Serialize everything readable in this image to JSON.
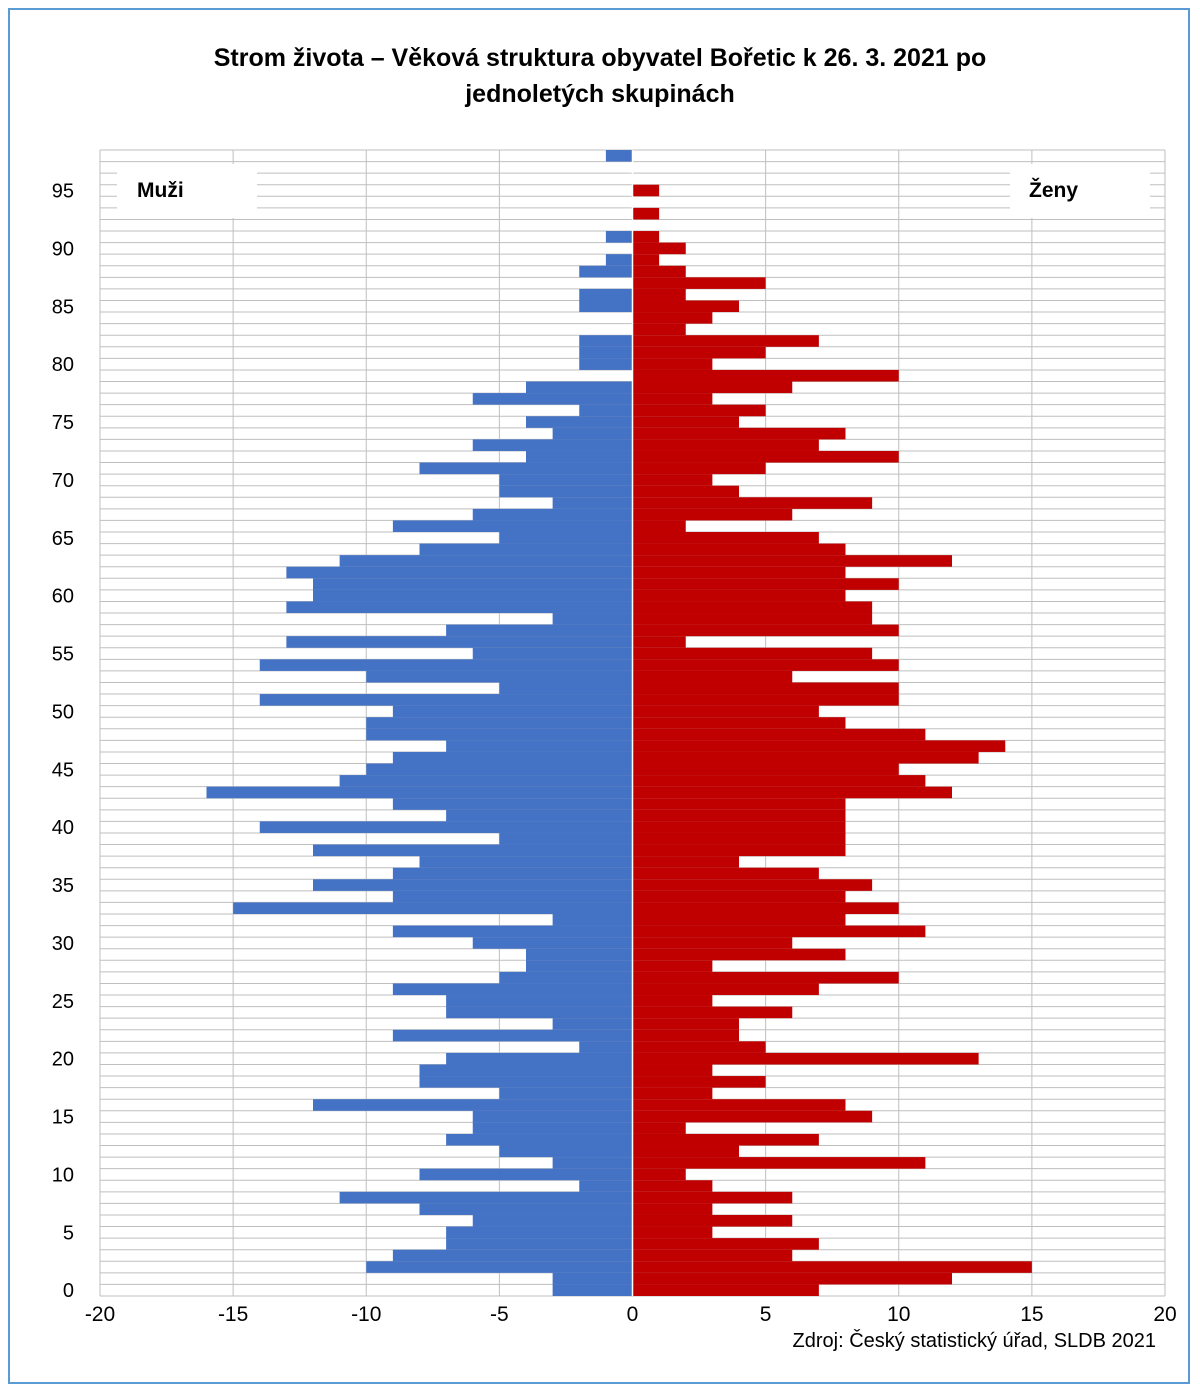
{
  "chart_data": {
    "type": "bar",
    "orientation": "horizontal-population-pyramid",
    "title_line1": "Strom života – Věková struktura obyvatel Bořetic k 26. 3. 2021 po",
    "title_line2": "jednoletých skupinách",
    "x_ticks": [
      "-20",
      "-15",
      "-10",
      "-5",
      "0",
      "5",
      "10",
      "15",
      "20"
    ],
    "y_ticks": [
      "0",
      "5",
      "10",
      "15",
      "20",
      "25",
      "30",
      "35",
      "40",
      "45",
      "50",
      "55",
      "60",
      "65",
      "70",
      "75",
      "80",
      "85",
      "90",
      "95"
    ],
    "xlim": [
      -20,
      20
    ],
    "ylim": [
      0,
      99
    ],
    "categories": [
      0,
      1,
      2,
      3,
      4,
      5,
      6,
      7,
      8,
      9,
      10,
      11,
      12,
      13,
      14,
      15,
      16,
      17,
      18,
      19,
      20,
      21,
      22,
      23,
      24,
      25,
      26,
      27,
      28,
      29,
      30,
      31,
      32,
      33,
      34,
      35,
      36,
      37,
      38,
      39,
      40,
      41,
      42,
      43,
      44,
      45,
      46,
      47,
      48,
      49,
      50,
      51,
      52,
      53,
      54,
      55,
      56,
      57,
      58,
      59,
      60,
      61,
      62,
      63,
      64,
      65,
      66,
      67,
      68,
      69,
      70,
      71,
      72,
      73,
      74,
      75,
      76,
      77,
      78,
      79,
      80,
      81,
      82,
      83,
      84,
      85,
      86,
      87,
      88,
      89,
      90,
      91,
      92,
      93,
      94,
      95,
      96,
      97,
      98
    ],
    "series": [
      {
        "name": "Muži",
        "color": "#4472c4",
        "values": [
          -3,
          -3,
          -10,
          -9,
          -7,
          -7,
          -6,
          -8,
          -11,
          -2,
          -8,
          -3,
          -5,
          -7,
          -6,
          -6,
          -12,
          -5,
          -8,
          -8,
          -7,
          -2,
          -9,
          -3,
          -7,
          -7,
          -9,
          -5,
          -4,
          -4,
          -6,
          -9,
          -3,
          -15,
          -9,
          -12,
          -9,
          -8,
          -12,
          -5,
          -14,
          -7,
          -9,
          -16,
          -11,
          -10,
          -9,
          -7,
          -10,
          -10,
          -9,
          -14,
          -5,
          -10,
          -14,
          -6,
          -13,
          -7,
          -3,
          -13,
          -12,
          -12,
          -13,
          -11,
          -8,
          -5,
          -9,
          -6,
          -3,
          -5,
          -5,
          -8,
          -4,
          -6,
          -3,
          -4,
          -2,
          -6,
          -4,
          0,
          -2,
          -2,
          -2,
          0,
          0,
          -2,
          -2,
          0,
          -2,
          -1,
          0,
          -1,
          0,
          0,
          0,
          0,
          0,
          0,
          -1
        ]
      },
      {
        "name": "Ženy",
        "color": "#c00000",
        "values": [
          7,
          12,
          15,
          6,
          7,
          3,
          6,
          3,
          6,
          3,
          2,
          11,
          4,
          7,
          2,
          9,
          8,
          3,
          5,
          3,
          13,
          5,
          4,
          4,
          6,
          3,
          7,
          10,
          3,
          8,
          6,
          11,
          8,
          10,
          8,
          9,
          7,
          4,
          8,
          8,
          8,
          8,
          8,
          12,
          11,
          10,
          13,
          14,
          11,
          8,
          7,
          10,
          10,
          6,
          10,
          9,
          2,
          10,
          9,
          9,
          8,
          10,
          8,
          12,
          8,
          7,
          2,
          6,
          9,
          4,
          3,
          5,
          10,
          7,
          8,
          4,
          5,
          3,
          6,
          10,
          3,
          5,
          7,
          2,
          3,
          4,
          2,
          5,
          2,
          1,
          2,
          1,
          0,
          1,
          0,
          1,
          0,
          0,
          0
        ]
      }
    ],
    "legend_left": "Muži",
    "legend_right": "Ženy",
    "source": "Zdroj: Český statistický úřad, SLDB 2021",
    "grid": true,
    "colors": {
      "male": "#4472c4",
      "female": "#c00000",
      "border": "#5b9bd5",
      "grid": "#bfbfbf"
    }
  }
}
